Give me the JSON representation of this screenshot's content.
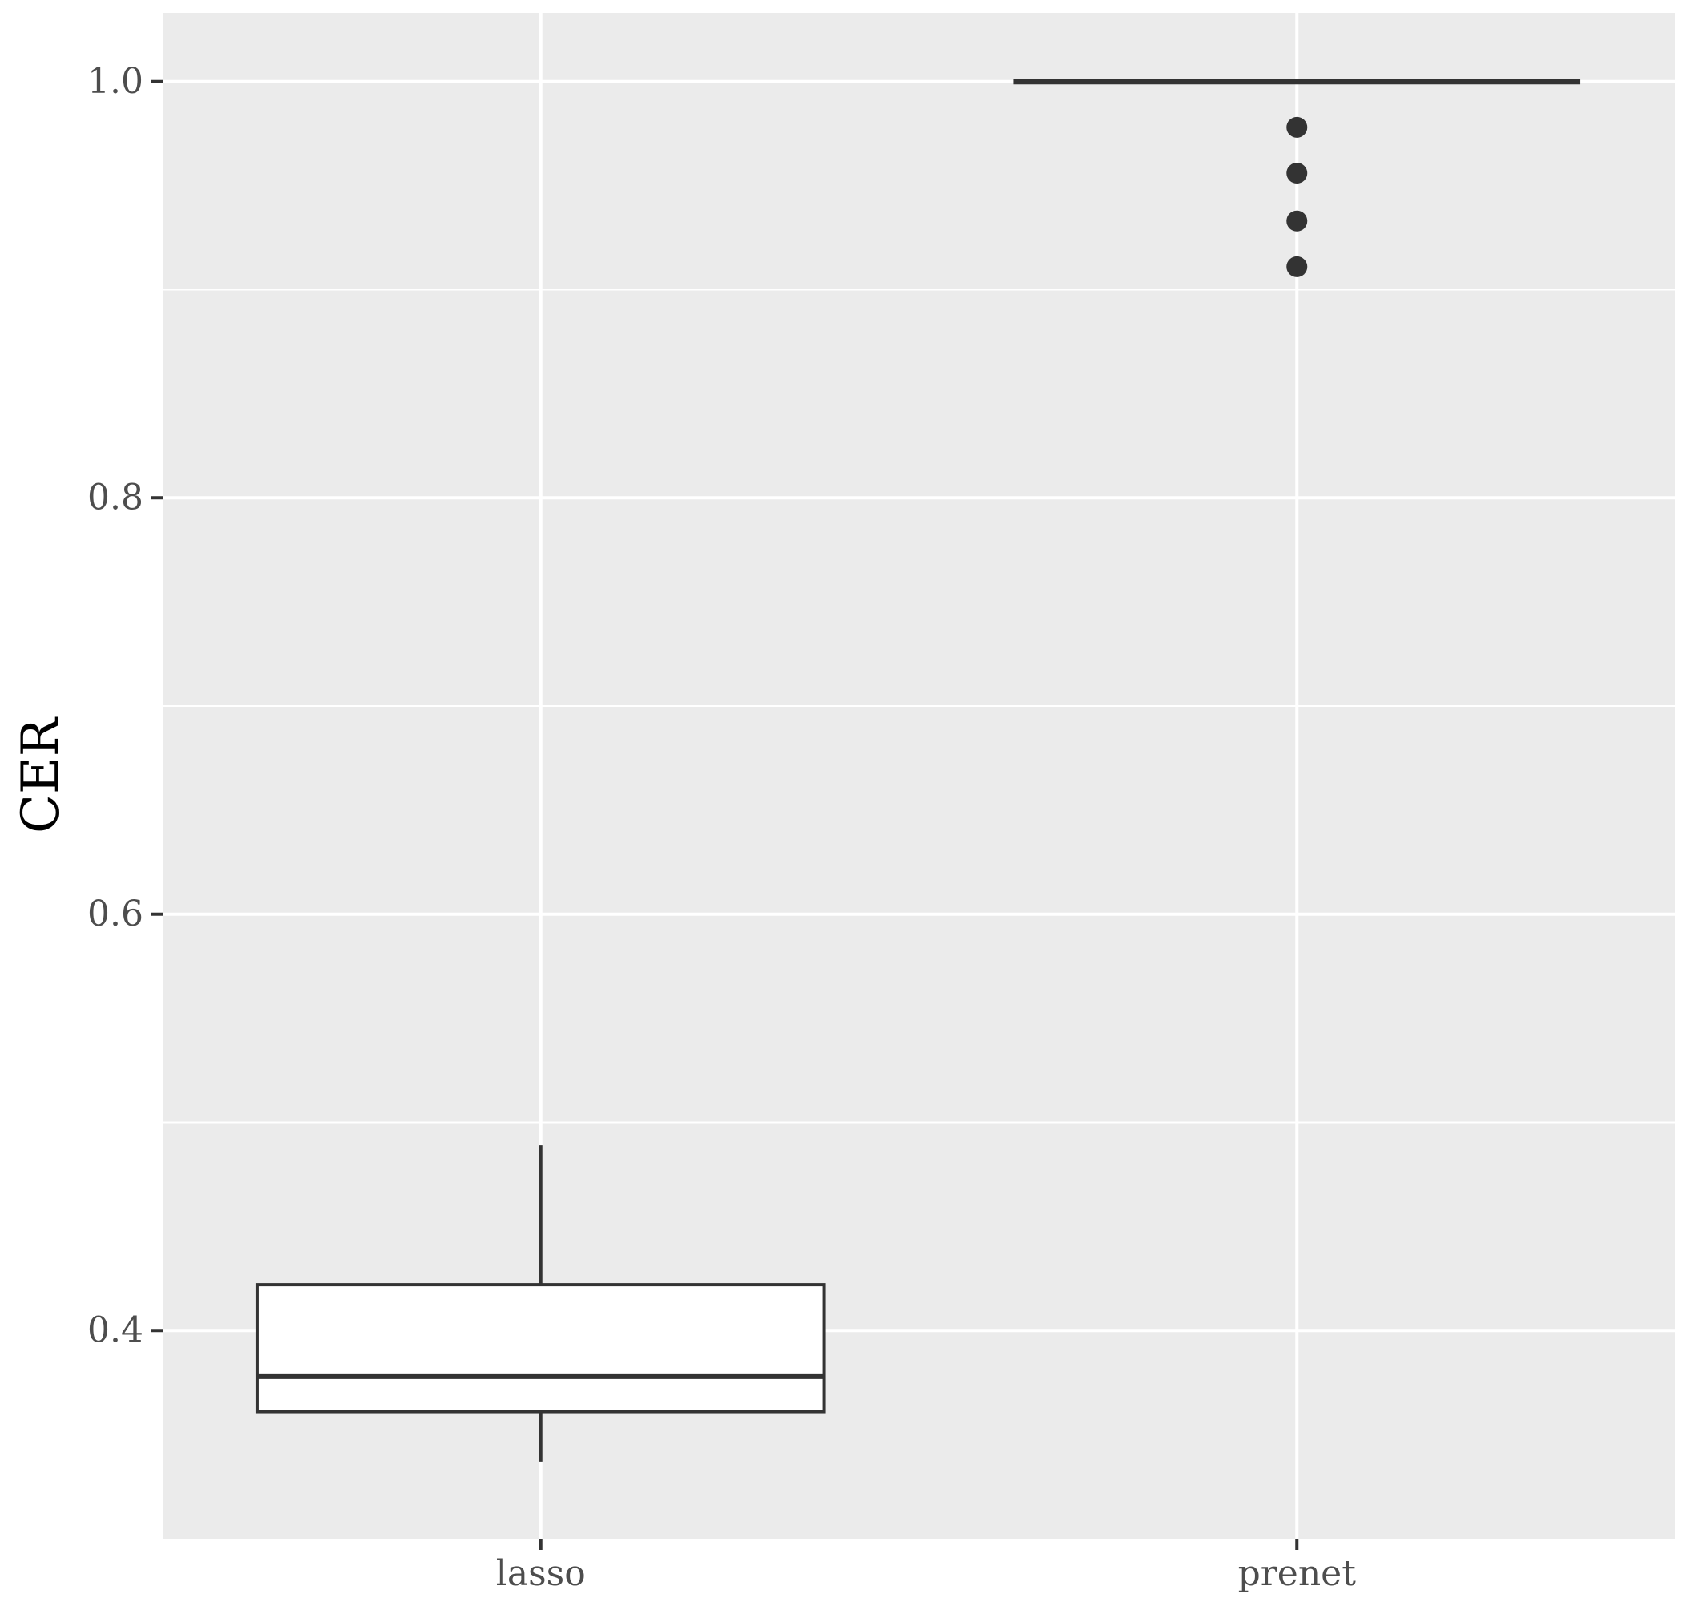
{
  "chart_data": {
    "type": "boxplot",
    "title": "",
    "xlabel": "",
    "ylabel": "CER",
    "categories": [
      "lasso",
      "prenet"
    ],
    "ylim": [
      0.3,
      1.033
    ],
    "yticks": [
      0.4,
      0.6,
      0.8,
      1.0
    ],
    "ytick_labels": [
      "0.4",
      "0.6",
      "0.8",
      "1.0"
    ],
    "grid": true,
    "legend": "none",
    "boxes": [
      {
        "category": "lasso",
        "lower_whisker": 0.337,
        "q1": 0.361,
        "median": 0.378,
        "q3": 0.422,
        "upper_whisker": 0.489,
        "outliers": []
      },
      {
        "category": "prenet",
        "lower_whisker": 1.0,
        "q1": 1.0,
        "median": 1.0,
        "q3": 1.0,
        "upper_whisker": 1.0,
        "outliers": [
          0.978,
          0.956,
          0.933,
          0.911
        ]
      }
    ],
    "colors": {
      "panel": "#ebebeb",
      "grid": "#ffffff",
      "box_fill": "#ffffff",
      "box_line": "#333333",
      "point": "#333333"
    }
  }
}
